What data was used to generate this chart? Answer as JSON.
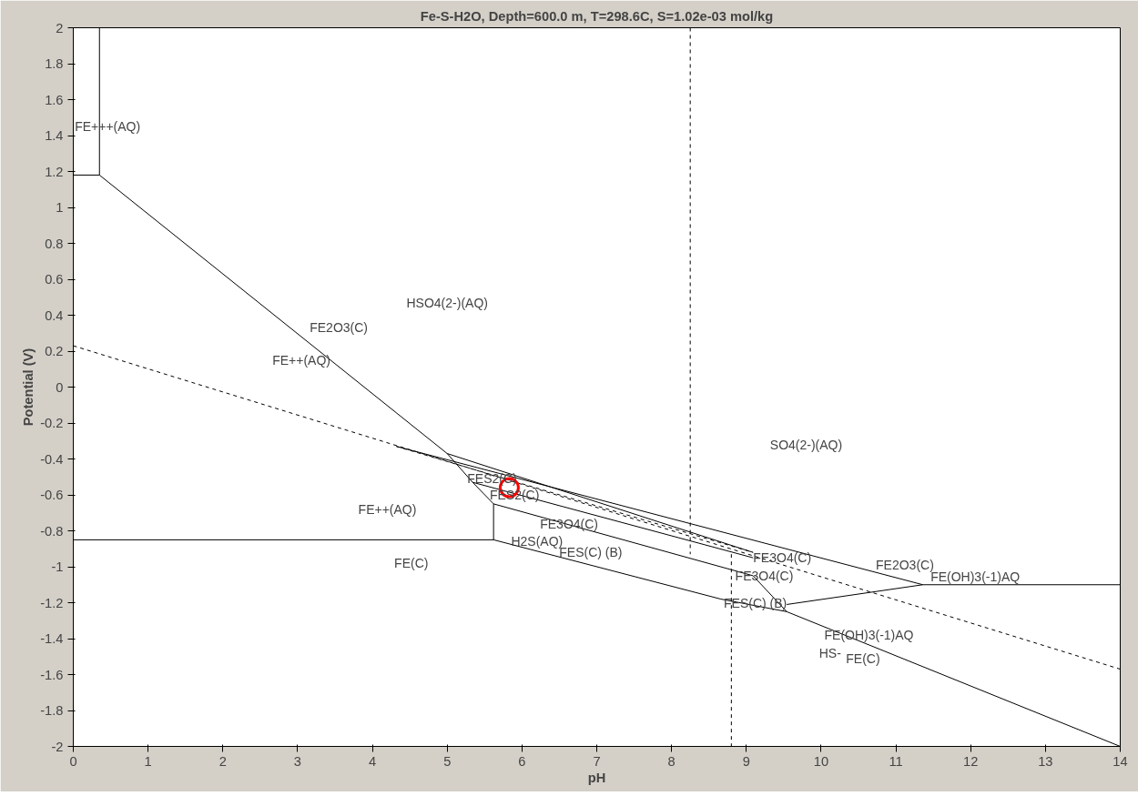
{
  "chart_data": {
    "type": "line",
    "title": "Fe-S-H2O, Depth=600.0 m, T=298.6C, S=1.02e-03 mol/kg",
    "xlabel": "pH",
    "ylabel": "Potential (V)",
    "xlim": [
      0,
      14
    ],
    "ylim": [
      -2,
      2
    ],
    "xticks": [
      0,
      1,
      2,
      3,
      4,
      5,
      6,
      7,
      8,
      9,
      10,
      11,
      12,
      13,
      14
    ],
    "yticks": [
      -2,
      -1.8,
      -1.6,
      -1.4,
      -1.2,
      -1,
      -0.8,
      -0.6,
      -0.4,
      -0.2,
      0,
      0.2,
      0.4,
      0.6,
      0.8,
      1,
      1.2,
      1.4,
      1.6,
      1.8,
      2
    ],
    "grid": false,
    "series": [
      {
        "color": "#000000",
        "line_style": "solid",
        "x": [
          0.35,
          0.35
        ],
        "values": [
          2,
          1.18
        ]
      },
      {
        "type": "line",
        "color": "#000000",
        "line_style": "solid",
        "x": [
          0,
          0.35,
          5.0,
          5.34,
          5.62,
          5.62
        ],
        "values": [
          1.18,
          1.18,
          -0.37,
          -0.53,
          -0.65,
          -0.85
        ]
      },
      {
        "type": "line",
        "color": "#000000",
        "line_style": "solid",
        "x": [
          0,
          5.62,
          8.66,
          9.54,
          14
        ],
        "values": [
          -0.85,
          -0.85,
          -1.18,
          -1.25,
          -2
        ]
      },
      {
        "type": "line",
        "color": "#000000",
        "line_style": "solid",
        "x": [
          4.32,
          11.36,
          14
        ],
        "values": [
          -0.33,
          -1.1,
          -1.1
        ]
      },
      {
        "type": "line",
        "color": "#000000",
        "line_style": "solid",
        "x": [
          9.54,
          11.36
        ],
        "values": [
          -1.21,
          -1.1
        ]
      },
      {
        "type": "line",
        "color": "#000000",
        "line_style": "solid",
        "x": [
          5.0,
          9.09
        ],
        "values": [
          -0.37,
          -0.92
        ]
      },
      {
        "type": "line",
        "color": "#000000",
        "line_style": "solid",
        "x": [
          5.34,
          9.09
        ],
        "values": [
          -0.53,
          -0.95
        ]
      },
      {
        "type": "line",
        "color": "#000000",
        "line_style": "solid",
        "x": [
          5.62,
          9.09,
          9.54
        ],
        "values": [
          -0.65,
          -1.05,
          -1.25
        ]
      },
      {
        "type": "line",
        "color": "#000000",
        "line_style": "dashed",
        "x": [
          4.32,
          9.09
        ],
        "values": [
          -0.33,
          -0.92
        ]
      },
      {
        "type": "line",
        "color": "#000000",
        "line_style": "dashed",
        "x": [
          0,
          14
        ],
        "values": [
          0.23,
          -1.57
        ]
      },
      {
        "type": "line",
        "color": "#000000",
        "line_style": "dashed",
        "x": [
          8.25,
          8.25
        ],
        "values": [
          2,
          -0.93
        ]
      },
      {
        "type": "line",
        "color": "#000000",
        "line_style": "dashed",
        "x": [
          8.8,
          8.8
        ],
        "values": [
          -0.93,
          -2
        ]
      },
      {
        "type": "scatter",
        "color": "#ff0000",
        "marker": "circle",
        "x": [
          5.83
        ],
        "values": [
          -0.56
        ]
      }
    ],
    "annotations": [
      "FE+++(AQ)",
      "HSO4(2-)(AQ)",
      "FE2O3(C)",
      "FE++(AQ)",
      "SO4(2-)(AQ)",
      "FES2(C)",
      "FES2(C)",
      "FE++(AQ)",
      "FE3O4(C)",
      "H2S(AQ)",
      "FES(C) (B)",
      "FE(C)",
      "FE3O4(C)",
      "FE3O4(C)",
      "FE2O3(C)",
      "FE(OH)3(-1)AQ",
      "FES(C) (B)",
      "FE(OH)3(-1)AQ",
      "HS-",
      "FE(C)"
    ]
  }
}
